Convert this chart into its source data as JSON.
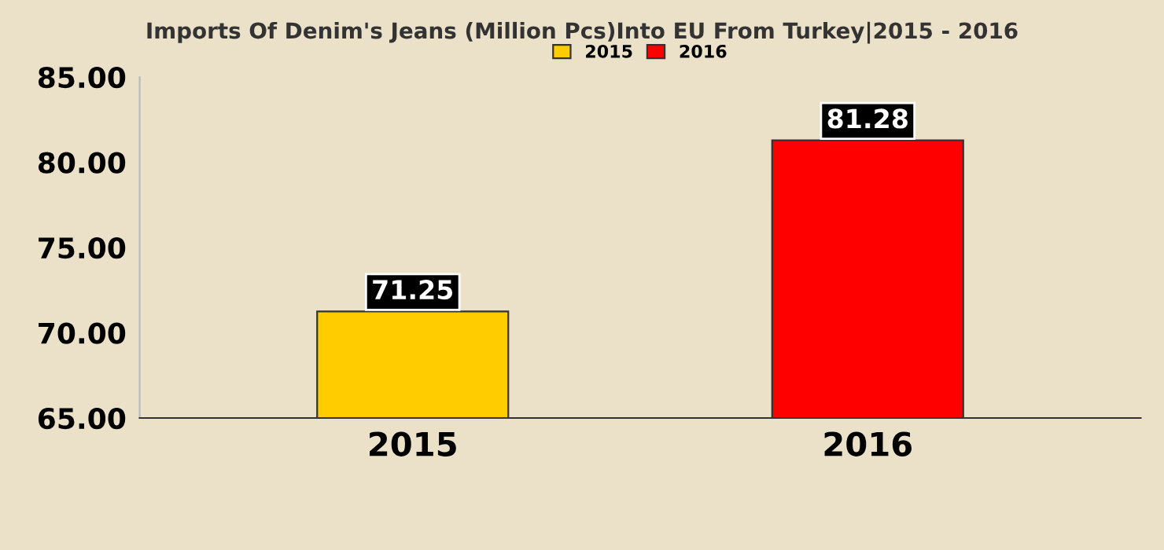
{
  "chart_data": {
    "type": "bar",
    "title": "Imports Of Denim's Jeans (Million Pcs)Into EU From Turkey|2015 - 2016",
    "categories": [
      "2015",
      "2016"
    ],
    "series": [
      {
        "name": "2015",
        "color": "#ffcc00",
        "values": [
          71.25,
          null
        ]
      },
      {
        "name": "2016",
        "color": "#ff0000",
        "values": [
          null,
          81.28
        ]
      }
    ],
    "ylim": [
      65,
      85
    ],
    "yticks": [
      {
        "value": 65,
        "label": "65.00"
      },
      {
        "value": 70,
        "label": "70.00"
      },
      {
        "value": 75,
        "label": "75.00"
      },
      {
        "value": 80,
        "label": "80.00"
      },
      {
        "value": 85,
        "label": "85.00"
      }
    ],
    "data_labels": true,
    "grid": false,
    "legend": "top"
  }
}
